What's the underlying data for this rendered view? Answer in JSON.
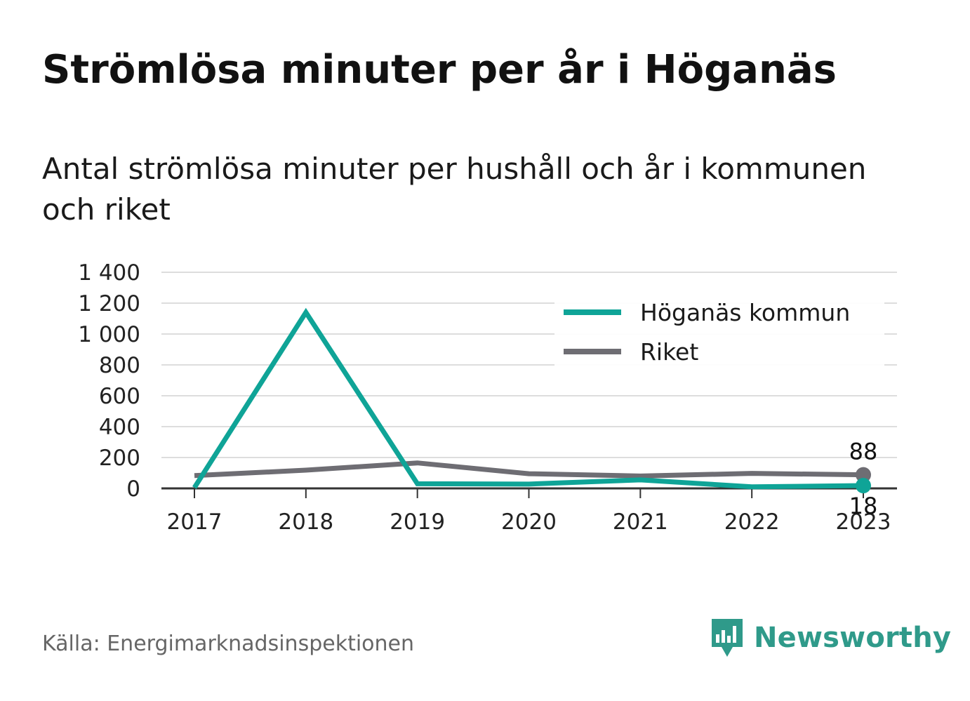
{
  "title": "Strömlösa minuter per år i Höganäs",
  "subtitle": "Antal strömlösa minuter per hushåll och år i kommunen och riket",
  "source": "Källa: Energimarknadsinspektionen",
  "brand": {
    "name": "Newsworthy",
    "icon": "newsworthy-logo-icon",
    "color": "#2f9a8a"
  },
  "chart_data": {
    "type": "line",
    "x": [
      "2017",
      "2018",
      "2019",
      "2020",
      "2021",
      "2022",
      "2023"
    ],
    "ylim": [
      0,
      1400
    ],
    "yticks": [
      0,
      200,
      400,
      600,
      800,
      1000,
      1200,
      1400
    ],
    "ytick_labels": [
      "0",
      "200",
      "400",
      "600",
      "800",
      "1 000",
      "1 200",
      "1 400"
    ],
    "grid": true,
    "legend_position": "top-right",
    "series": [
      {
        "name": "Höganäs kommun",
        "color": "#0fa497",
        "values": [
          5,
          1140,
          30,
          28,
          55,
          10,
          18
        ],
        "end_label": "18"
      },
      {
        "name": "Riket",
        "color": "#6e6d73",
        "values": [
          83,
          118,
          165,
          95,
          80,
          97,
          88
        ],
        "end_label": "88"
      }
    ]
  }
}
